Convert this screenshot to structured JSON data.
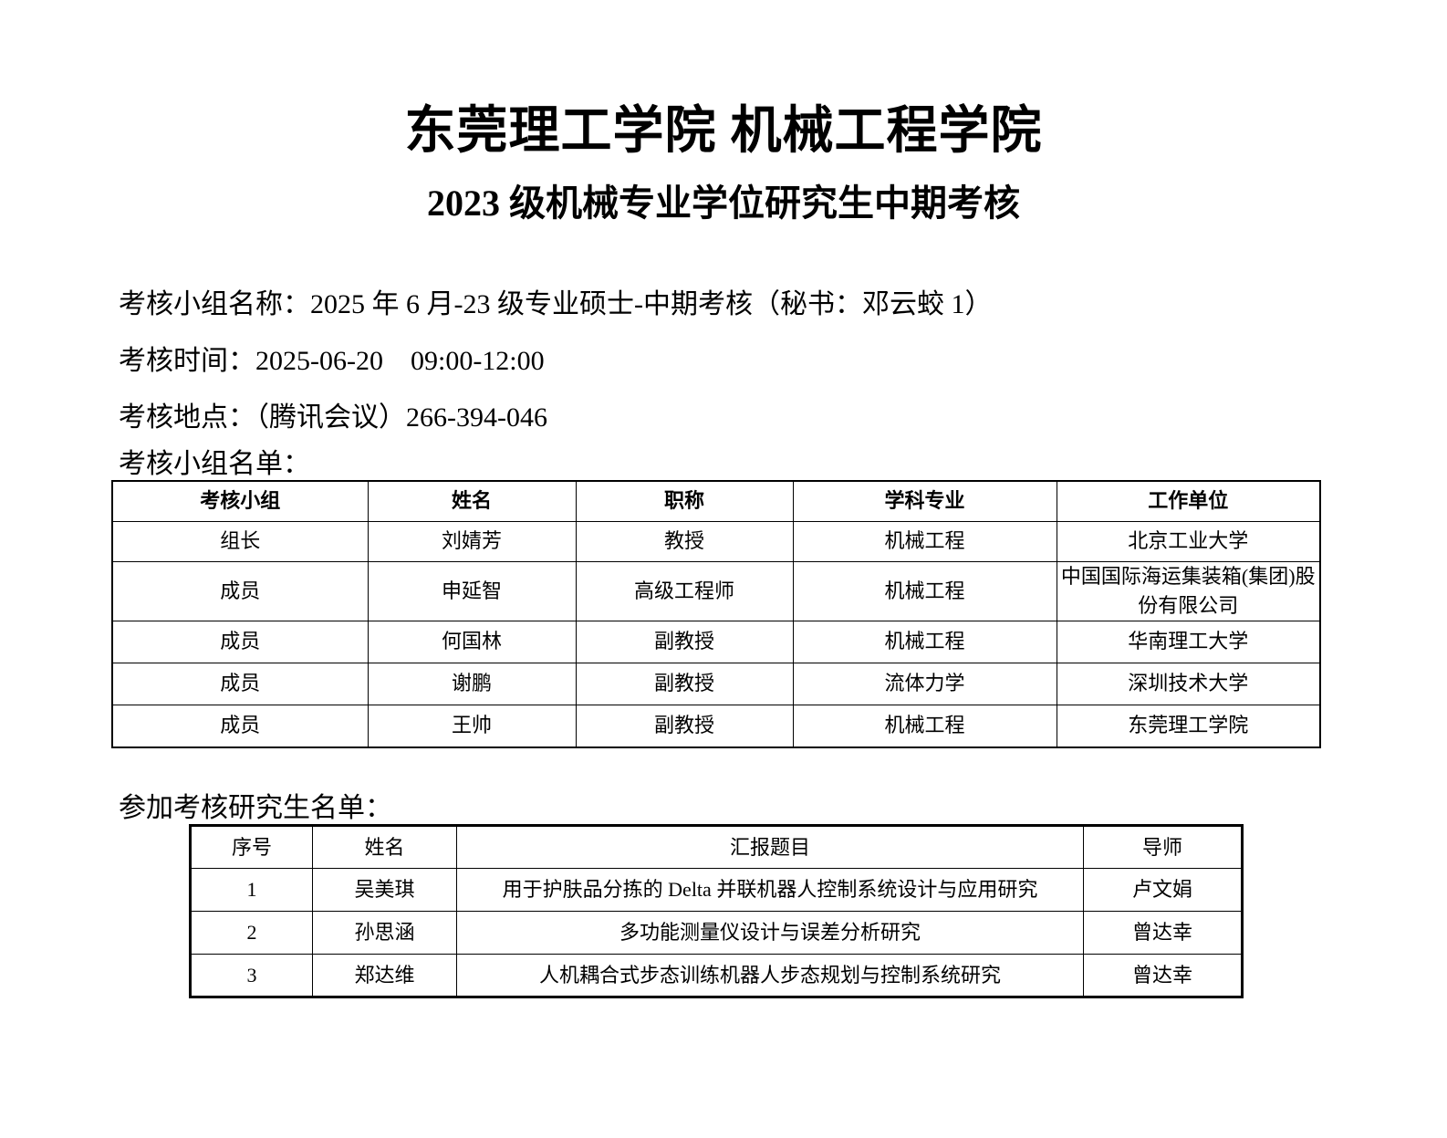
{
  "header": {
    "title": "东莞理工学院  机械工程学院",
    "subtitle": "2023 级机械专业学位研究生中期考核"
  },
  "info": {
    "group_name": "考核小组名称：2025 年 6 月-23 级专业硕士-中期考核（秘书：邓云蛟 1）",
    "time": "考核时间：2025-06-20    09:00-12:00",
    "location": "考核地点：（腾讯会议）266-394-046",
    "members_heading": "考核小组名单：",
    "students_heading": "参加考核研究生名单："
  },
  "members_table": {
    "columns": [
      "考核小组",
      "姓名",
      "职称",
      "学科专业",
      "工作单位"
    ],
    "rows": [
      [
        "组长",
        "刘婧芳",
        "教授",
        "机械工程",
        "北京工业大学"
      ],
      [
        "成员",
        "申延智",
        "高级工程师",
        "机械工程",
        "中国国际海运集装箱(集团)股份有限公司"
      ],
      [
        "成员",
        "何国林",
        "副教授",
        "机械工程",
        "华南理工大学"
      ],
      [
        "成员",
        "谢鹏",
        "副教授",
        "流体力学",
        "深圳技术大学"
      ],
      [
        "成员",
        "王帅",
        "副教授",
        "机械工程",
        "东莞理工学院"
      ]
    ]
  },
  "students_table": {
    "columns": [
      "序号",
      "姓名",
      "汇报题目",
      "导师"
    ],
    "rows": [
      [
        "1",
        "吴美琪",
        "用于护肤品分拣的 Delta 并联机器人控制系统设计与应用研究",
        "卢文娟"
      ],
      [
        "2",
        "孙思涵",
        "多功能测量仪设计与误差分析研究",
        "曾达幸"
      ],
      [
        "3",
        "郑达维",
        "人机耦合式步态训练机器人步态规划与控制系统研究",
        "曾达幸"
      ]
    ]
  }
}
